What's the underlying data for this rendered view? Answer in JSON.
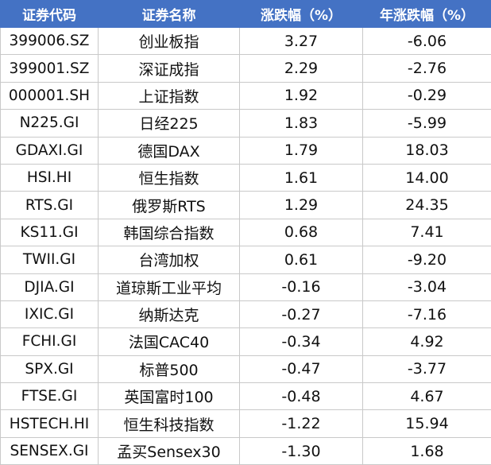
{
  "table": {
    "headers": [
      "证券代码",
      "证券名称",
      "涨跌幅（%）",
      "年涨跌幅（%）"
    ],
    "rows": [
      {
        "code": "399006.SZ",
        "name": "创业板指",
        "change": "3.27",
        "ytd": "-6.06"
      },
      {
        "code": "399001.SZ",
        "name": "深证成指",
        "change": "2.29",
        "ytd": "-2.76"
      },
      {
        "code": "000001.SH",
        "name": "上证指数",
        "change": "1.92",
        "ytd": "-0.29"
      },
      {
        "code": "N225.GI",
        "name": "日经225",
        "change": "1.83",
        "ytd": "-5.99"
      },
      {
        "code": "GDAXI.GI",
        "name": "德国DAX",
        "change": "1.79",
        "ytd": "18.03"
      },
      {
        "code": "HSI.HI",
        "name": "恒生指数",
        "change": "1.61",
        "ytd": "14.00"
      },
      {
        "code": "RTS.GI",
        "name": "俄罗斯RTS",
        "change": "1.29",
        "ytd": "24.35"
      },
      {
        "code": "KS11.GI",
        "name": "韩国综合指数",
        "change": "0.68",
        "ytd": "7.41"
      },
      {
        "code": "TWII.GI",
        "name": "台湾加权",
        "change": "0.61",
        "ytd": "-9.20"
      },
      {
        "code": "DJIA.GI",
        "name": "道琼斯工业平均",
        "change": "-0.16",
        "ytd": "-3.04"
      },
      {
        "code": "IXIC.GI",
        "name": "纳斯达克",
        "change": "-0.27",
        "ytd": "-7.16"
      },
      {
        "code": "FCHI.GI",
        "name": "法国CAC40",
        "change": "-0.34",
        "ytd": "4.92"
      },
      {
        "code": "SPX.GI",
        "name": "标普500",
        "change": "-0.47",
        "ytd": "-3.77"
      },
      {
        "code": "FTSE.GI",
        "name": "英国富时100",
        "change": "-0.48",
        "ytd": "4.67"
      },
      {
        "code": "HSTECH.HI",
        "name": "恒生科技指数",
        "change": "-1.22",
        "ytd": "15.94"
      },
      {
        "code": "SENSEX.GI",
        "name": "孟买Sensex30",
        "change": "-1.30",
        "ytd": "1.68"
      }
    ]
  },
  "colors": {
    "header_bg": "#4472c4",
    "header_text": "#ffffff",
    "grid": "#c9c9c9"
  }
}
